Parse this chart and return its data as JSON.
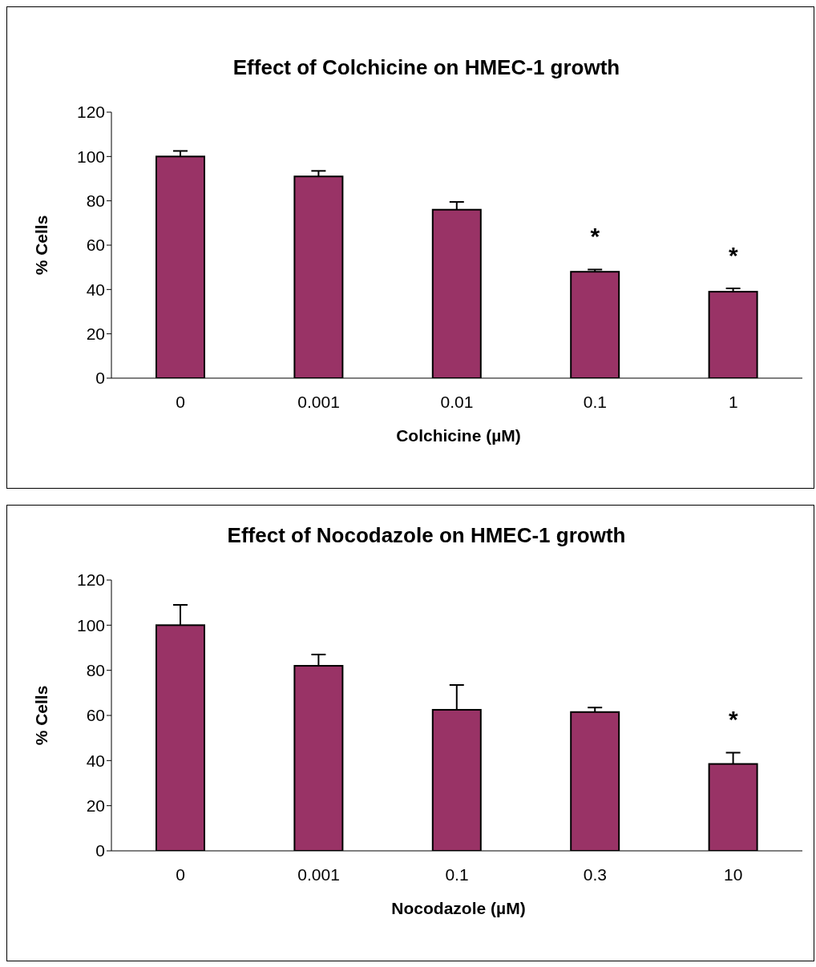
{
  "chart_data": [
    {
      "type": "bar",
      "title": "Effect of Colchicine on HMEC-1 growth",
      "xlabel": "Colchicine (µM)",
      "ylabel": "% Cells",
      "categories": [
        "0",
        "0.001",
        "0.01",
        "0.1",
        "1"
      ],
      "values": [
        100,
        91,
        76,
        48,
        39
      ],
      "color": "#993366",
      "errors": [
        [
          100,
          102.5
        ],
        [
          91,
          93.5
        ],
        [
          76,
          79.5
        ],
        [
          48,
          49
        ],
        [
          39,
          40.5
        ]
      ],
      "ylim": [
        0,
        120
      ],
      "yticks": [
        0,
        20,
        40,
        60,
        80,
        100,
        120
      ],
      "grid": false,
      "legend": false,
      "annotations": [
        {
          "text": "*",
          "x": "0.1",
          "y": 49
        },
        {
          "text": "*",
          "x": "1",
          "y": 40.5
        }
      ]
    },
    {
      "type": "bar",
      "title": "Effect of Nocodazole on HMEC-1 growth",
      "xlabel": "Nocodazole (µM)",
      "ylabel": "% Cells",
      "categories": [
        "0",
        "0.001",
        "0.1",
        "0.3",
        "10"
      ],
      "values": [
        100,
        82,
        62.5,
        61.5,
        38.5
      ],
      "color": "#993366",
      "errors": [
        [
          100,
          109
        ],
        [
          82,
          87
        ],
        [
          62.5,
          73.5
        ],
        [
          61.5,
          63.5
        ],
        [
          38.5,
          43.5
        ]
      ],
      "ylim": [
        0,
        120
      ],
      "yticks": [
        0,
        20,
        40,
        60,
        80,
        100,
        120
      ],
      "grid": false,
      "legend": false,
      "annotations": [
        {
          "text": "*",
          "x": "10",
          "y": 43.5
        }
      ]
    }
  ]
}
